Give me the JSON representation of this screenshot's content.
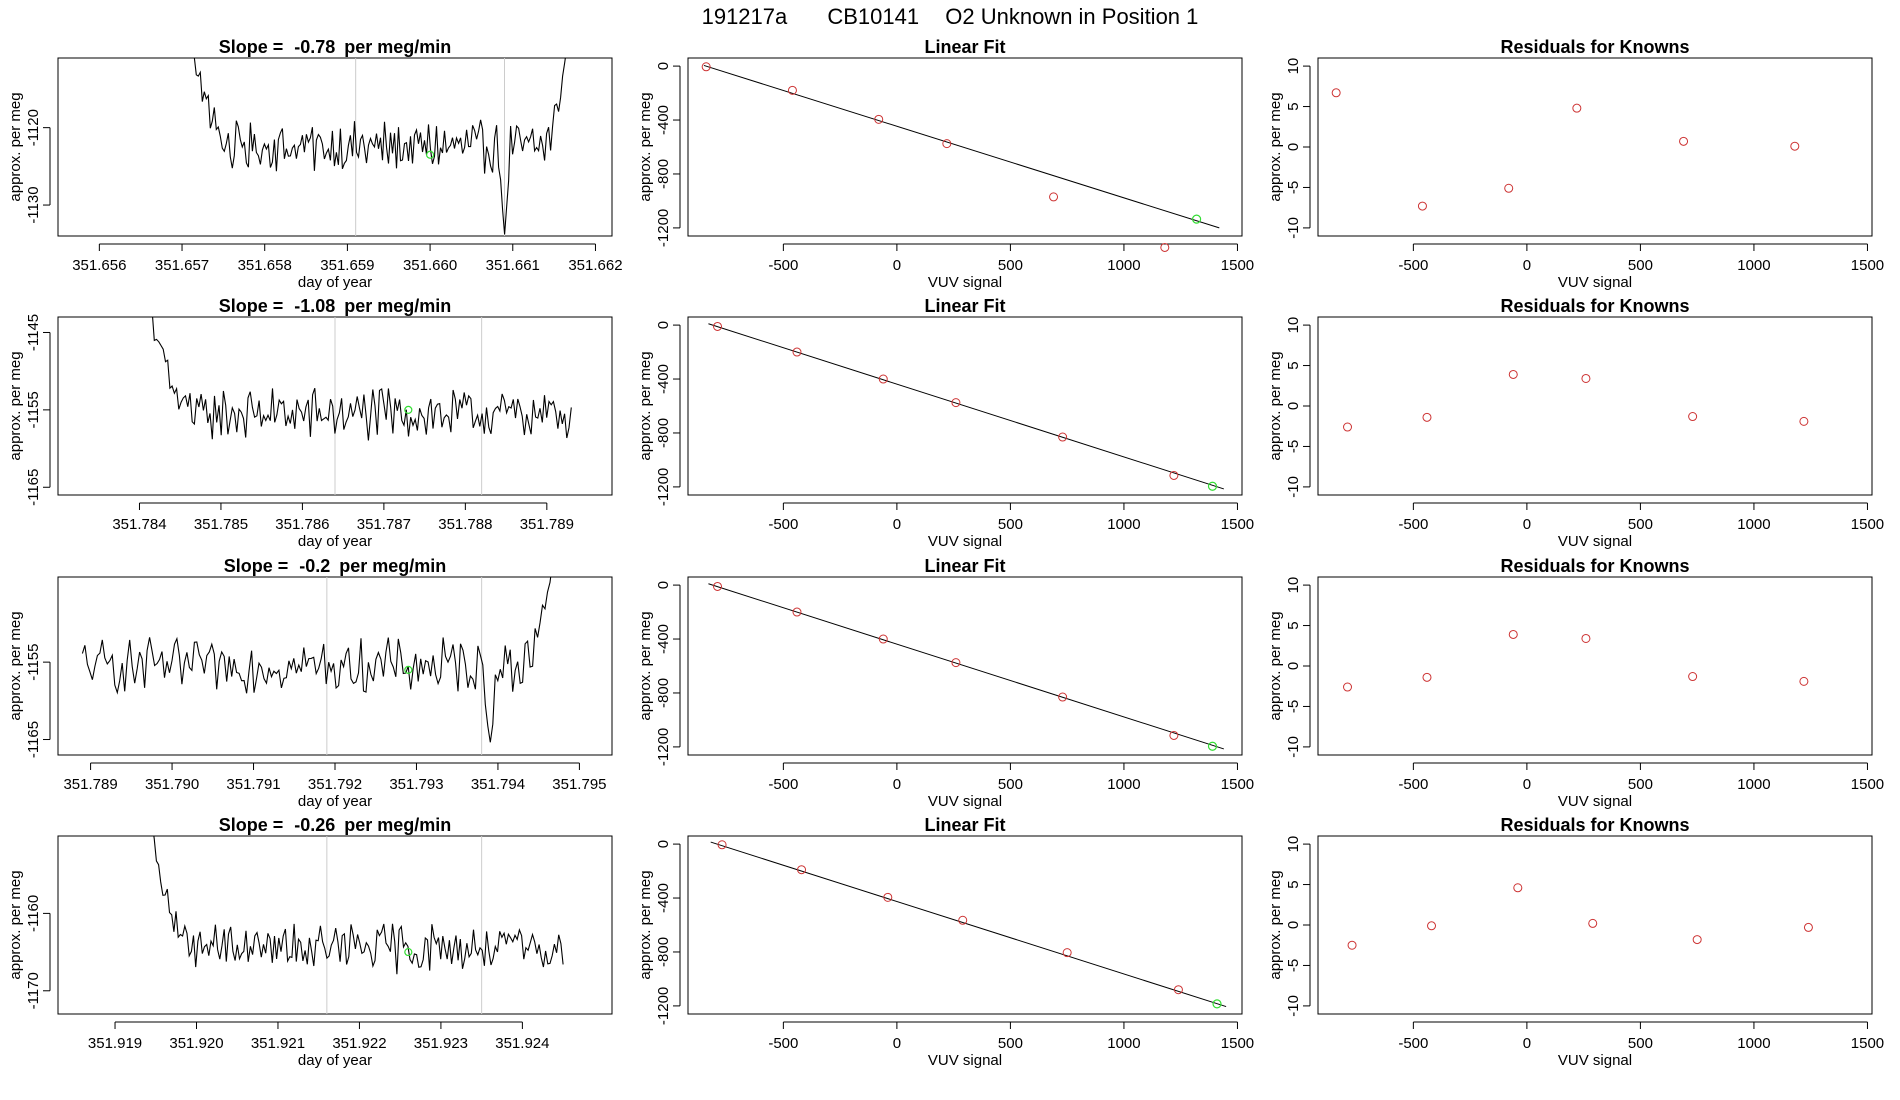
{
  "figure": {
    "title_parts": [
      "191217a",
      "CB10141",
      "O2 Unknown in Position  1"
    ]
  },
  "colors": {
    "line": "#000000",
    "known_point": "#cd3333",
    "unknown_point": "#33dd33",
    "marker_line": "#cccccc",
    "background": "#ffffff"
  },
  "chart_data": [
    {
      "row": 0,
      "slope_panel": {
        "type": "line",
        "title_prefix": "Slope = ",
        "slope": "-0.78",
        "title_suffix": " per meg/min",
        "xlabel": "day of year",
        "ylabel": "approx. per meg",
        "xlim": [
          351.6555,
          351.6622
        ],
        "ylim": [
          -1134,
          -1111
        ],
        "xticks": [
          "351.656",
          "351.657",
          "351.658",
          "351.659",
          "351.660",
          "351.661",
          "351.662"
        ],
        "yticks": [
          "-1120",
          "-1130"
        ],
        "series_start": 351.6571,
        "series_end": 351.6617,
        "baseline": -1122.5,
        "noise": 2.6,
        "start_peak": -1108,
        "end_peak": -1105,
        "dip_time": 351.6609,
        "dip_value": -1134,
        "vlines": [
          351.6591,
          351.6609
        ],
        "unknown_point": {
          "x": 351.66,
          "y": -1123.5
        }
      },
      "fit_panel": {
        "type": "line+scatter",
        "title": "Linear Fit",
        "xlabel": "VUV signal",
        "ylabel": "approx. per meg",
        "xlim": [
          -920,
          1520
        ],
        "ylim": [
          -1260,
          60
        ],
        "xticks": [
          "-500",
          "0",
          "500",
          "1000",
          "1500"
        ],
        "yticks": [
          "0",
          "-400",
          "-800",
          "-1200"
        ],
        "known_x": [
          -840,
          -460,
          -80,
          220,
          690,
          1180
        ],
        "known_y": [
          -5,
          -180,
          -395,
          -575,
          -970,
          -1345
        ],
        "unknown": {
          "x": 1320,
          "y": -1135
        },
        "fit_line": {
          "x": [
            -850,
            1420
          ],
          "y": [
            5,
            -1200
          ]
        }
      },
      "resid_panel": {
        "type": "scatter",
        "title": "Residuals for Knowns",
        "xlabel": "VUV signal",
        "ylabel": "approx. per meg",
        "xlim": [
          -920,
          1520
        ],
        "ylim": [
          -11,
          11
        ],
        "xticks": [
          "-500",
          "0",
          "500",
          "1000",
          "1500"
        ],
        "yticks": [
          "10",
          "5",
          "0",
          "-5",
          "-10"
        ],
        "x": [
          -840,
          -460,
          -80,
          220,
          690,
          1180
        ],
        "y": [
          6.7,
          -7.3,
          -5.1,
          4.8,
          0.7,
          0.1
        ]
      }
    },
    {
      "row": 1,
      "slope_panel": {
        "type": "line",
        "title_prefix": "Slope = ",
        "slope": "-1.08",
        "title_suffix": " per meg/min",
        "xlabel": "day of year",
        "ylabel": "approx. per meg",
        "xlim": [
          351.783,
          351.7898
        ],
        "ylim": [
          -1166,
          -1143
        ],
        "xticks": [
          "351.784",
          "351.785",
          "351.786",
          "351.787",
          "351.788",
          "351.789"
        ],
        "yticks": [
          "-1145",
          "-1155",
          "-1165"
        ],
        "series_start": 351.7841,
        "series_end": 351.7893,
        "baseline": -1155.5,
        "noise": 2.7,
        "start_peak": -1140,
        "end_peak": null,
        "dip_time": null,
        "dip_value": null,
        "vlines": [
          351.7864,
          351.7882
        ],
        "unknown_point": {
          "x": 351.7873,
          "y": -1155
        }
      },
      "fit_panel": {
        "type": "line+scatter",
        "title": "Linear Fit",
        "xlabel": "VUV signal",
        "ylabel": "approx. per meg",
        "xlim": [
          -920,
          1520
        ],
        "ylim": [
          -1260,
          60
        ],
        "xticks": [
          "-500",
          "0",
          "500",
          "1000",
          "1500"
        ],
        "yticks": [
          "0",
          "-400",
          "-800",
          "-1200"
        ],
        "known_x": [
          -790,
          -440,
          -60,
          260,
          730,
          1220
        ],
        "known_y": [
          -10,
          -200,
          -400,
          -575,
          -830,
          -1115
        ],
        "unknown": {
          "x": 1390,
          "y": -1195
        },
        "fit_line": {
          "x": [
            -830,
            1440
          ],
          "y": [
            10,
            -1215
          ]
        }
      },
      "resid_panel": {
        "type": "scatter",
        "title": "Residuals for Knowns",
        "xlabel": "VUV signal",
        "ylabel": "approx. per meg",
        "xlim": [
          -920,
          1520
        ],
        "ylim": [
          -11,
          11
        ],
        "xticks": [
          "-500",
          "0",
          "500",
          "1000",
          "1500"
        ],
        "yticks": [
          "10",
          "5",
          "0",
          "-5",
          "-10"
        ],
        "x": [
          -790,
          -440,
          -60,
          260,
          730,
          1220
        ],
        "y": [
          -2.6,
          -1.4,
          3.9,
          3.4,
          -1.3,
          -1.9
        ]
      }
    },
    {
      "row": 2,
      "slope_panel": {
        "type": "line",
        "title_prefix": "Slope = ",
        "slope": "-0.2",
        "title_suffix": " per meg/min",
        "xlabel": "day of year",
        "ylabel": "approx. per meg",
        "xlim": [
          351.7886,
          351.7954
        ],
        "ylim": [
          -1167,
          -1144
        ],
        "xticks": [
          "351.789",
          "351.790",
          "351.791",
          "351.792",
          "351.793",
          "351.794",
          "351.795"
        ],
        "yticks": [
          "-1155",
          "-1165"
        ],
        "series_start": 351.7889,
        "series_end": 351.7947,
        "baseline": -1155.5,
        "noise": 2.8,
        "start_peak": null,
        "end_peak": -1140,
        "dip_time": 351.7939,
        "dip_value": -1166,
        "vlines": [
          351.7919,
          351.7938
        ],
        "unknown_point": {
          "x": 351.7929,
          "y": -1156
        }
      },
      "fit_panel": {
        "type": "line+scatter",
        "title": "Linear Fit",
        "xlabel": "VUV signal",
        "ylabel": "approx. per meg",
        "xlim": [
          -920,
          1520
        ],
        "ylim": [
          -1260,
          60
        ],
        "xticks": [
          "-500",
          "0",
          "500",
          "1000",
          "1500"
        ],
        "yticks": [
          "0",
          "-400",
          "-800",
          "-1200"
        ],
        "known_x": [
          -790,
          -440,
          -60,
          260,
          730,
          1220
        ],
        "known_y": [
          -10,
          -200,
          -400,
          -575,
          -830,
          -1115
        ],
        "unknown": {
          "x": 1390,
          "y": -1195
        },
        "fit_line": {
          "x": [
            -830,
            1440
          ],
          "y": [
            10,
            -1215
          ]
        }
      },
      "resid_panel": {
        "type": "scatter",
        "title": "Residuals for Knowns",
        "xlabel": "VUV signal",
        "ylabel": "approx. per meg",
        "xlim": [
          -920,
          1520
        ],
        "ylim": [
          -11,
          11
        ],
        "xticks": [
          "-500",
          "0",
          "500",
          "1000",
          "1500"
        ],
        "yticks": [
          "10",
          "5",
          "0",
          "-5",
          "-10"
        ],
        "x": [
          -790,
          -440,
          -60,
          260,
          730,
          1220
        ],
        "y": [
          -2.6,
          -1.4,
          3.9,
          3.4,
          -1.3,
          -1.9
        ]
      }
    },
    {
      "row": 3,
      "slope_panel": {
        "type": "line",
        "title_prefix": "Slope = ",
        "slope": "-0.26",
        "title_suffix": " per meg/min",
        "xlabel": "day of year",
        "ylabel": "approx. per meg",
        "xlim": [
          351.9183,
          351.9251
        ],
        "ylim": [
          -1173,
          -1150
        ],
        "xticks": [
          "351.919",
          "351.920",
          "351.921",
          "351.922",
          "351.923",
          "351.924"
        ],
        "yticks": [
          "-1160",
          "-1170"
        ],
        "series_start": 351.9194,
        "series_end": 351.9245,
        "baseline": -1164.5,
        "noise": 2.6,
        "start_peak": -1146,
        "end_peak": null,
        "dip_time": null,
        "dip_value": null,
        "vlines": [
          351.9216,
          351.9235
        ],
        "unknown_point": {
          "x": 351.9226,
          "y": -1165
        }
      },
      "fit_panel": {
        "type": "line+scatter",
        "title": "Linear Fit",
        "xlabel": "VUV signal",
        "ylabel": "approx. per meg",
        "xlim": [
          -920,
          1520
        ],
        "ylim": [
          -1260,
          60
        ],
        "xticks": [
          "-500",
          "0",
          "500",
          "1000",
          "1500"
        ],
        "yticks": [
          "0",
          "-400",
          "-800",
          "-1200"
        ],
        "known_x": [
          -770,
          -420,
          -40,
          290,
          750,
          1240
        ],
        "known_y": [
          -5,
          -190,
          -395,
          -565,
          -805,
          -1080
        ],
        "unknown": {
          "x": 1410,
          "y": -1185
        },
        "fit_line": {
          "x": [
            -820,
            1450
          ],
          "y": [
            15,
            -1205
          ]
        }
      },
      "resid_panel": {
        "type": "scatter",
        "title": "Residuals for Knowns",
        "xlabel": "VUV signal",
        "ylabel": "approx. per meg",
        "xlim": [
          -920,
          1520
        ],
        "ylim": [
          -11,
          11
        ],
        "xticks": [
          "-500",
          "0",
          "500",
          "1000",
          "1500"
        ],
        "yticks": [
          "10",
          "5",
          "0",
          "-5",
          "-10"
        ],
        "x": [
          -770,
          -420,
          -40,
          290,
          750,
          1240
        ],
        "y": [
          -2.5,
          -0.1,
          4.6,
          0.2,
          -1.8,
          -0.3
        ]
      }
    }
  ]
}
